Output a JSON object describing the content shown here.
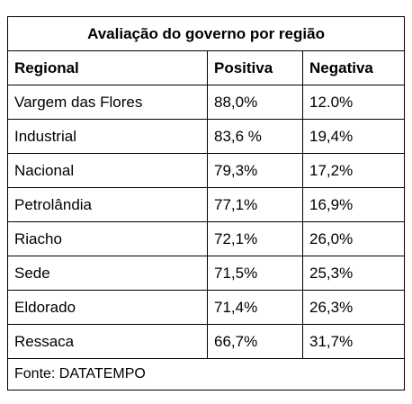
{
  "table": {
    "title": "Avaliação do governo por região",
    "header": [
      "Regional",
      "Positiva",
      "Negativa"
    ],
    "rows": [
      [
        "Vargem das Flores",
        "88,0%",
        "12.0%"
      ],
      [
        "Industrial",
        "83,6 %",
        "19,4%"
      ],
      [
        "Nacional",
        "79,3%",
        "17,2%"
      ],
      [
        "Petrolândia",
        "77,1%",
        "16,9%"
      ],
      [
        "Riacho",
        "72,1%",
        "26,0%"
      ],
      [
        "Sede",
        "71,5%",
        "25,3%"
      ],
      [
        "Eldorado",
        "71,4%",
        "26,3%"
      ],
      [
        "Ressaca",
        "66,7%",
        "31,7%"
      ]
    ],
    "footer": "Fonte: DATATEMPO"
  }
}
